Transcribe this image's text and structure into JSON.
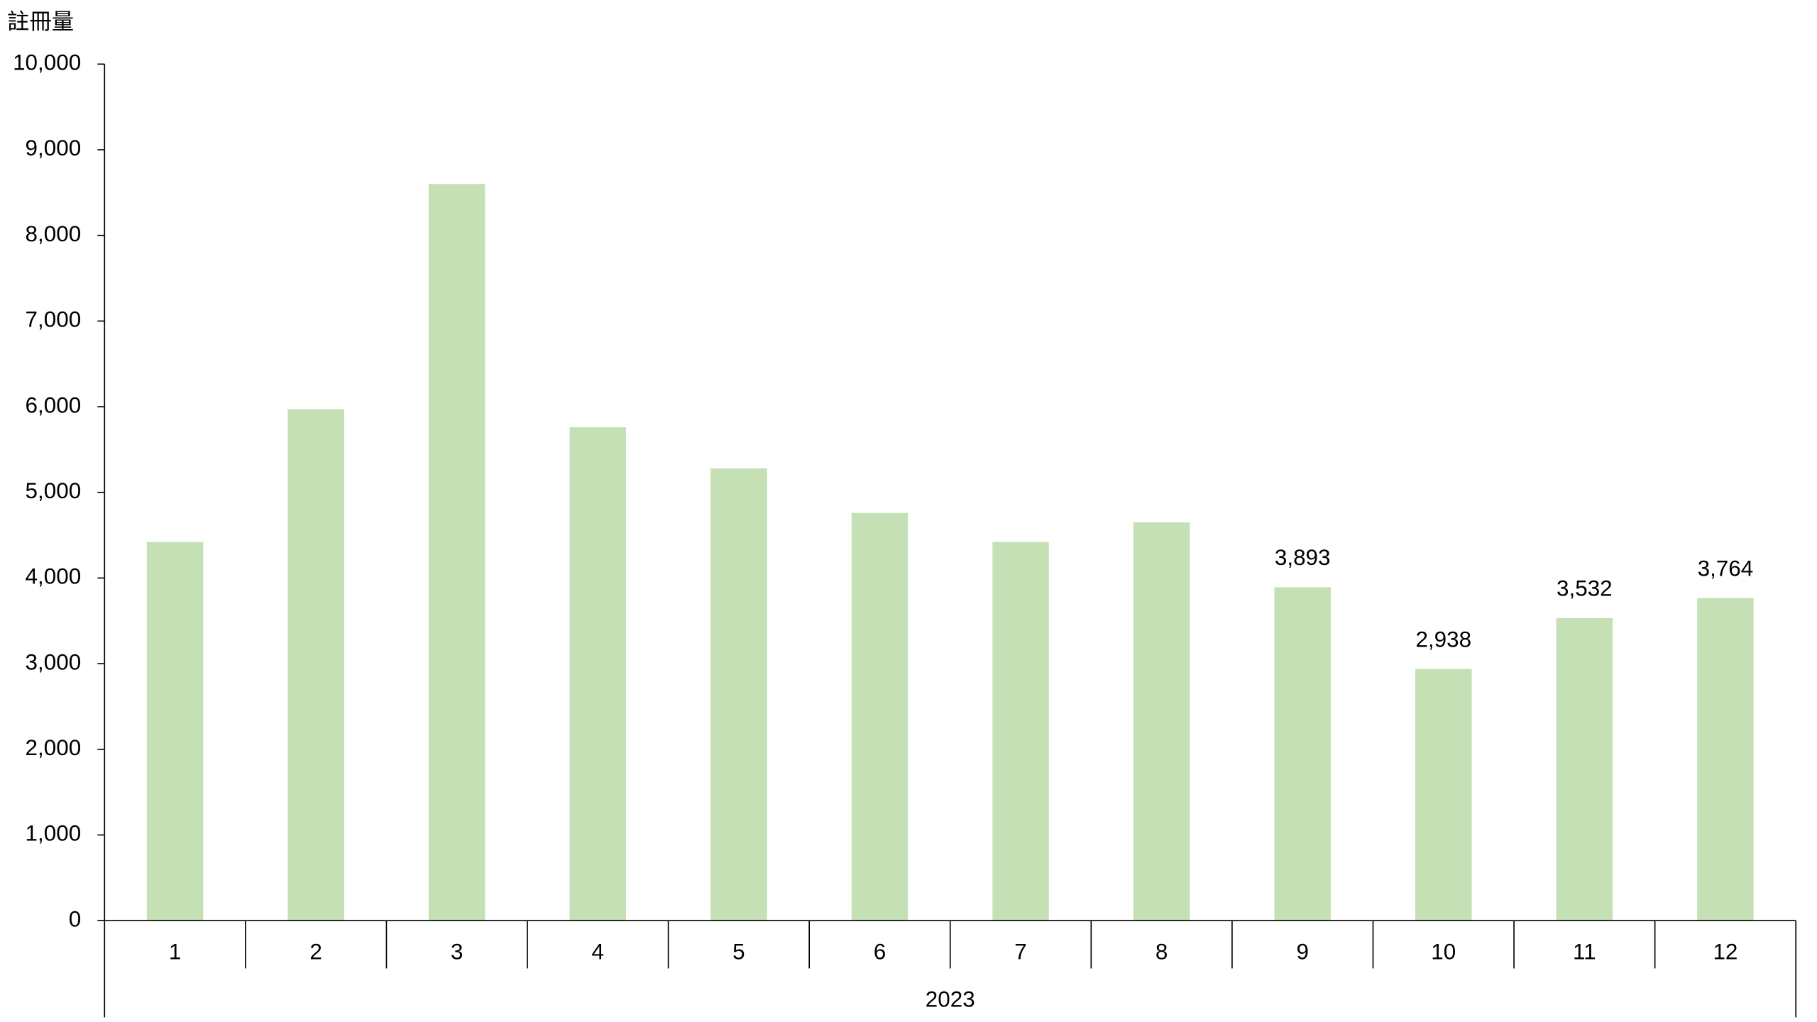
{
  "chart_data": {
    "type": "bar",
    "y_label": "註冊量",
    "categories": [
      "1",
      "2",
      "3",
      "4",
      "5",
      "6",
      "7",
      "8",
      "9",
      "10",
      "11",
      "12"
    ],
    "group_label": "2023",
    "values": [
      4420,
      5970,
      8600,
      5760,
      5280,
      4760,
      4420,
      4650,
      3893,
      2938,
      3532,
      3764
    ],
    "value_labels": [
      null,
      null,
      null,
      null,
      null,
      null,
      null,
      null,
      "3,893",
      "2,938",
      "3,532",
      "3,764"
    ],
    "color": "#c5e0b4",
    "ylim": [
      0,
      10000
    ],
    "yticks": [
      0,
      {
        "value": 1000,
        "label": "1,000"
      },
      {
        "value": 2000,
        "label": "2,000"
      },
      {
        "value": 3000,
        "label": "3,000"
      },
      {
        "value": 4000,
        "label": "4,000"
      },
      {
        "value": 5000,
        "label": "5,000"
      },
      {
        "value": 6000,
        "label": "6,000"
      },
      {
        "value": 7000,
        "label": "7,000"
      },
      {
        "value": 8000,
        "label": "8,000"
      },
      {
        "value": 9000,
        "label": "9,000"
      },
      {
        "value": 10000,
        "label": "10,000"
      }
    ],
    "grid": false
  }
}
